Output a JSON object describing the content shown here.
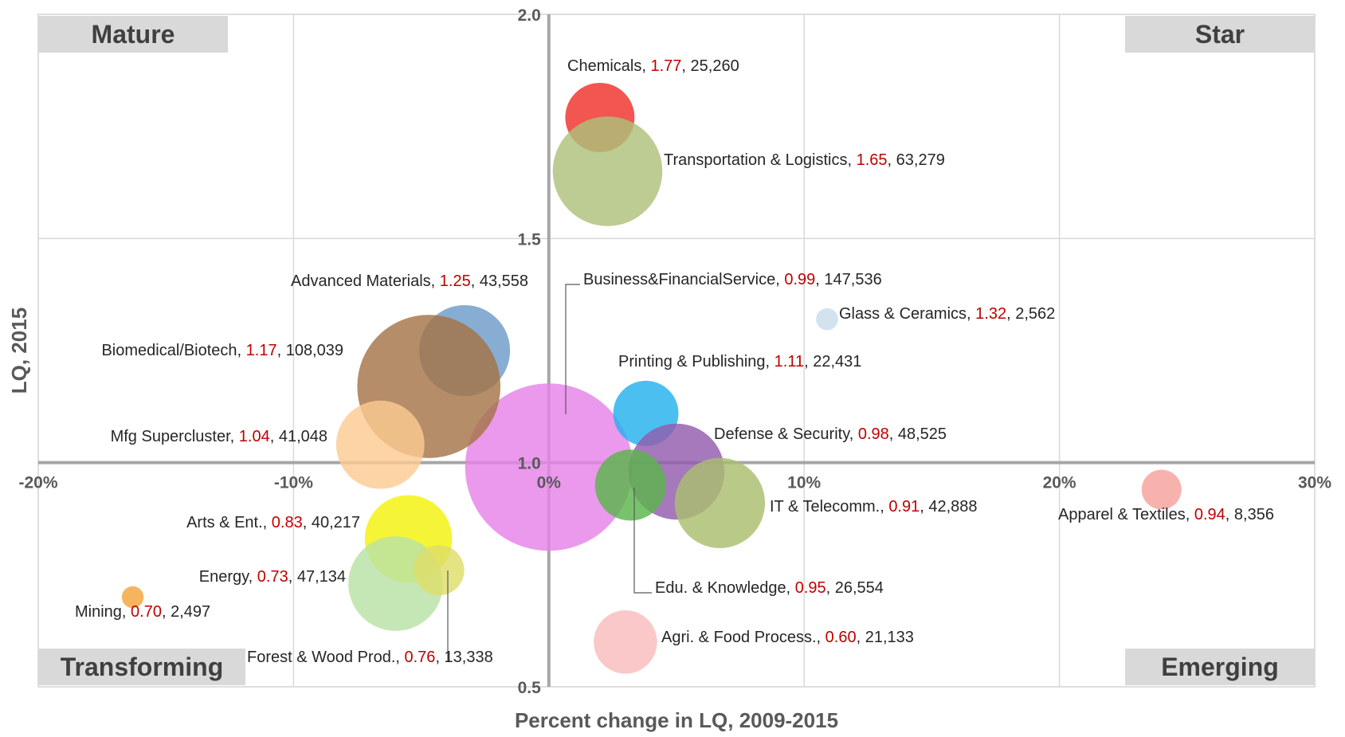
{
  "chart_data": {
    "type": "scatter",
    "subtype": "bubble",
    "xlabel": "Percent change in LQ, 2009-2015",
    "ylabel": "LQ, 2015",
    "xlim": [
      -20,
      30
    ],
    "ylim": [
      0.5,
      2.0
    ],
    "x_ticks": [
      -20,
      -10,
      0,
      10,
      20,
      30
    ],
    "x_tick_labels": [
      "-20%",
      "-10%",
      "0%",
      "10%",
      "20%",
      "30%"
    ],
    "y_ticks": [
      0.5,
      1.0,
      1.5,
      2.0
    ],
    "y_tick_labels": [
      "0.5",
      "1.0",
      "1.5",
      "2.0"
    ],
    "grid": true,
    "crossing_axes": {
      "x": 0,
      "y": 1.0
    },
    "label_color_lq": "#c00000",
    "quadrants": [
      {
        "label": "Mature",
        "position": "top-left"
      },
      {
        "label": "Star",
        "position": "top-right"
      },
      {
        "label": "Transforming",
        "position": "bottom-left"
      },
      {
        "label": "Emerging",
        "position": "bottom-right"
      }
    ],
    "series": [
      {
        "name": "Chemicals",
        "x": 2.0,
        "y": 1.77,
        "lq_label": "1.77",
        "employment": "25,260",
        "size": 25260,
        "color": "#f0302a"
      },
      {
        "name": "Transportation & Logistics",
        "x": 2.3,
        "y": 1.65,
        "lq_label": "1.65",
        "employment": "63,279",
        "size": 63279,
        "color": "#adc17a"
      },
      {
        "name": "Business&FinancialService",
        "x": 0.0,
        "y": 0.99,
        "lq_label": "0.99",
        "employment": "147,536",
        "size": 147536,
        "color": "#e583e8"
      },
      {
        "name": "Glass & Ceramics",
        "x": 10.9,
        "y": 1.32,
        "lq_label": "1.32",
        "employment": "2,562",
        "size": 2562,
        "color": "#c9dcec"
      },
      {
        "name": "Advanced Materials",
        "x": -3.3,
        "y": 1.25,
        "lq_label": "1.25",
        "employment": "43,558",
        "size": 43558,
        "color": "#6d9bc9"
      },
      {
        "name": "Biomedical/Biotech",
        "x": -4.7,
        "y": 1.17,
        "lq_label": "1.17",
        "employment": "108,039",
        "size": 108039,
        "color": "#a57447"
      },
      {
        "name": "Printing & Publishing",
        "x": 3.8,
        "y": 1.11,
        "lq_label": "1.11",
        "employment": "22,431",
        "size": 22431,
        "color": "#24b1ee"
      },
      {
        "name": "Mfg Supercluster",
        "x": -6.6,
        "y": 1.04,
        "lq_label": "1.04",
        "employment": "41,048",
        "size": 41048,
        "color": "#fbcb91"
      },
      {
        "name": "Defense & Security",
        "x": 5.0,
        "y": 0.98,
        "lq_label": "0.98",
        "employment": "48,525",
        "size": 48525,
        "color": "#925cad"
      },
      {
        "name": "Edu. & Knowledge",
        "x": 3.2,
        "y": 0.95,
        "lq_label": "0.95",
        "employment": "26,554",
        "size": 26554,
        "color": "#5cb54c"
      },
      {
        "name": "IT & Telecomm.",
        "x": 6.7,
        "y": 0.91,
        "lq_label": "0.91",
        "employment": "42,888",
        "size": 42888,
        "color": "#a9be6e"
      },
      {
        "name": "Apparel & Textiles",
        "x": 24.0,
        "y": 0.94,
        "lq_label": "0.94",
        "employment": "8,356",
        "size": 8356,
        "color": "#f6a19c"
      },
      {
        "name": "Arts & Ent.",
        "x": -5.5,
        "y": 0.83,
        "lq_label": "0.83",
        "employment": "40,217",
        "size": 40217,
        "color": "#f4f20a"
      },
      {
        "name": "Energy",
        "x": -6.0,
        "y": 0.73,
        "lq_label": "0.73",
        "employment": "47,134",
        "size": 47134,
        "color": "#b8e2a6"
      },
      {
        "name": "Forest & Wood Prod.",
        "x": -4.3,
        "y": 0.76,
        "lq_label": "0.76",
        "employment": "13,338",
        "size": 13338,
        "color": "#dede6a"
      },
      {
        "name": "Mining",
        "x": -16.3,
        "y": 0.7,
        "lq_label": "0.70",
        "employment": "2,497",
        "size": 2497,
        "color": "#f5a43b"
      },
      {
        "name": "Agri. & Food Process.",
        "x": 3.0,
        "y": 0.6,
        "lq_label": "0.60",
        "employment": "21,133",
        "size": 21133,
        "color": "#f9bcbc"
      }
    ]
  }
}
